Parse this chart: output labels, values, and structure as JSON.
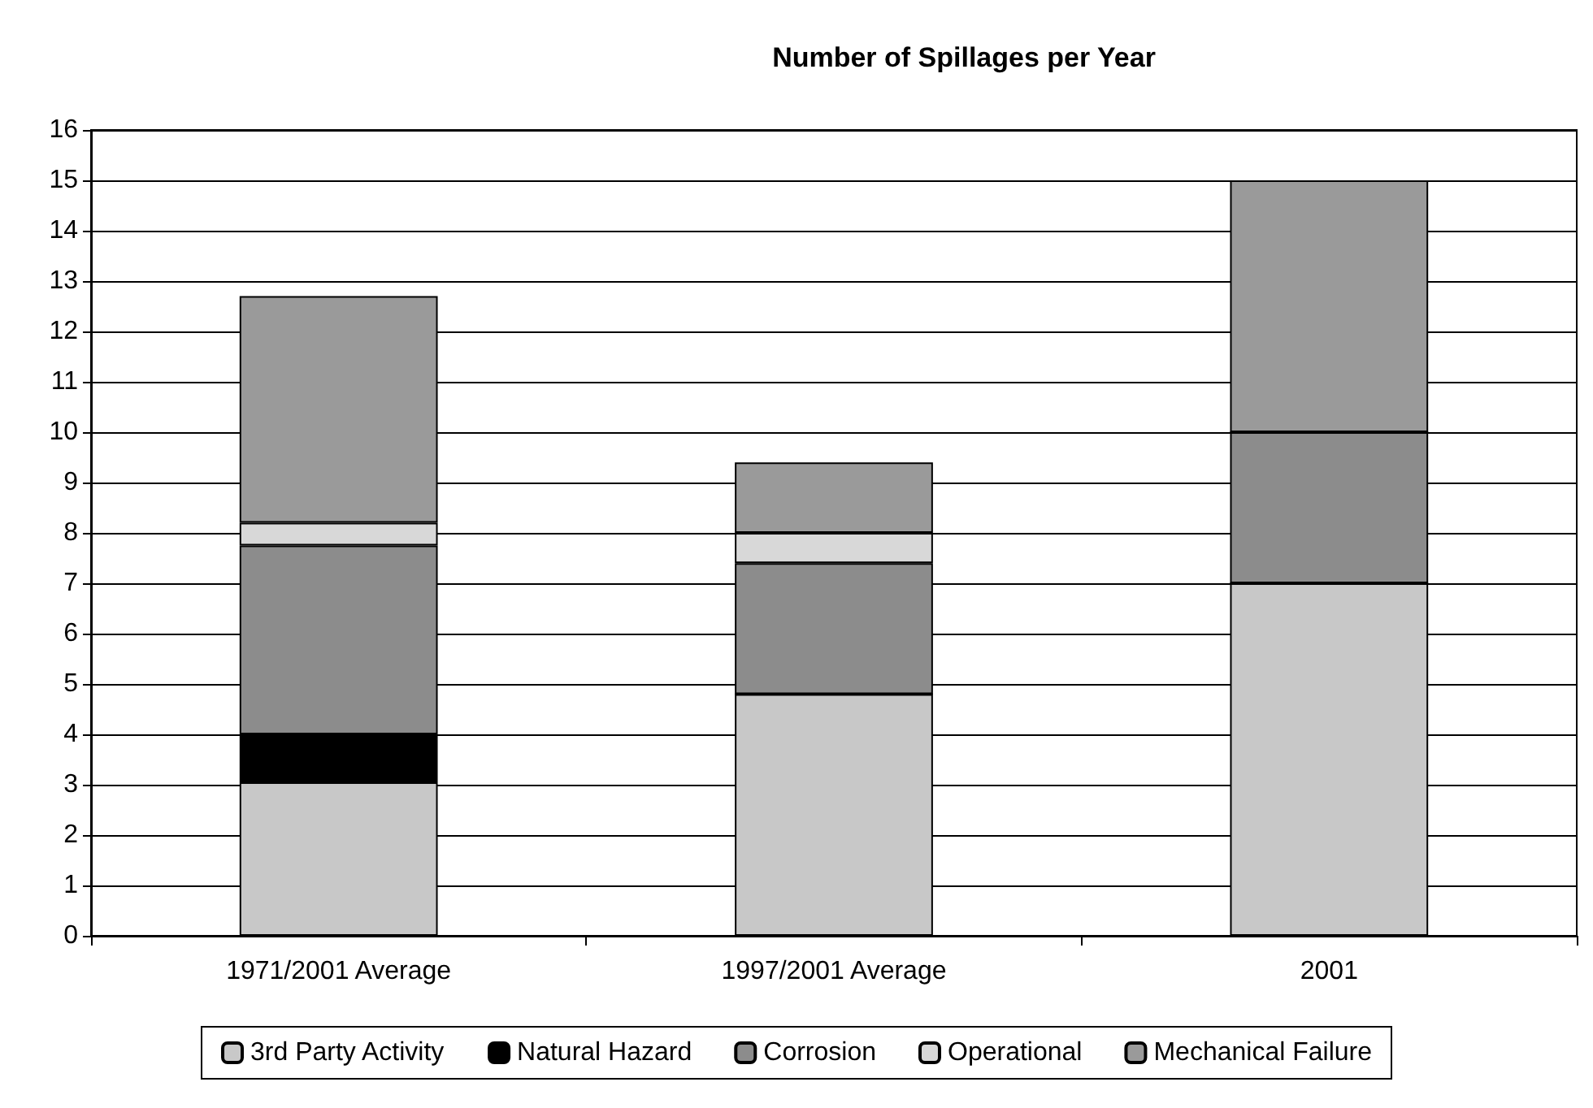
{
  "chart_data": {
    "type": "bar",
    "title": "Number of Spillages per Year",
    "stacked": true,
    "categories": [
      "1971/2001 Average",
      "1997/2001 Average",
      "2001"
    ],
    "series": [
      {
        "name": "3rd Party Activity",
        "color": "#c8c8c8",
        "values": [
          3.05,
          4.8,
          7
        ]
      },
      {
        "name": "Natural Hazard",
        "color": "#000000",
        "values": [
          0.95,
          0,
          0
        ]
      },
      {
        "name": "Corrosion",
        "color": "#8c8c8c",
        "values": [
          3.75,
          2.6,
          3
        ]
      },
      {
        "name": "Operational",
        "color": "#d8d8d8",
        "values": [
          0.45,
          0.6,
          0
        ]
      },
      {
        "name": "Mechanical Failure",
        "color": "#9a9a9a",
        "values": [
          4.5,
          1.4,
          5
        ]
      }
    ],
    "ylim": [
      0,
      16
    ],
    "yticks": [
      0,
      1,
      2,
      3,
      4,
      5,
      6,
      7,
      8,
      9,
      10,
      11,
      12,
      13,
      14,
      15,
      16
    ],
    "grid": "y",
    "legend": "bottom"
  }
}
